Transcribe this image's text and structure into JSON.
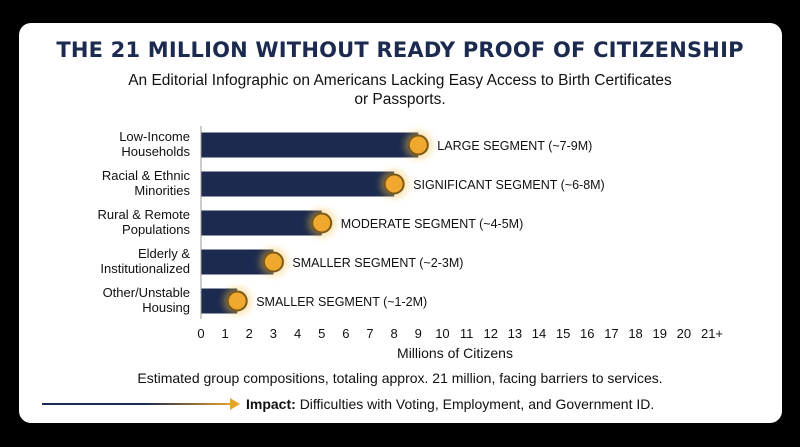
{
  "title": "THE 21 MILLION WITHOUT READY PROOF OF CITIZENSHIP",
  "subtitle": "An Editorial Infographic on Americans Lacking Easy Access to Birth Certificates or Passports.",
  "footnote": "Estimated group compositions, totaling approx. 21 million, facing barriers to services.",
  "impact": {
    "label": "Impact:",
    "text": "Difficulties with Voting, Employment, and Government ID."
  },
  "colors": {
    "bar": "#1b2a4e",
    "marker": "#f0a92e",
    "marker_stroke": "#7a5a1c",
    "title": "#1b2a4e",
    "accent": "#e8a32a"
  },
  "chart_data": {
    "type": "bar",
    "orientation": "horizontal",
    "categories": [
      [
        "Low-Income",
        "Households"
      ],
      [
        "Racial & Ethnic",
        "Minorities"
      ],
      [
        "Rural & Remote",
        "Populations"
      ],
      [
        "Elderly &",
        "Institutionalized"
      ],
      [
        "Other/Unstable",
        "Housing"
      ]
    ],
    "values": [
      9,
      8,
      5,
      3,
      1.5
    ],
    "data_labels": [
      "LARGE SEGMENT (~7-9M)",
      "SIGNIFICANT SEGMENT (~6-8M)",
      "MODERATE SEGMENT (~4-5M)",
      "SMALLER SEGMENT (~2-3M)",
      "SMALLER SEGMENT (~1-2M)"
    ],
    "xlabel": "Millions of Citizens",
    "ylabel": "",
    "xlim": [
      0,
      21
    ],
    "x_ticks": [
      "0",
      "1",
      "2",
      "3",
      "4",
      "5",
      "6",
      "7",
      "8",
      "9",
      "10",
      "11",
      "12",
      "13",
      "14",
      "15",
      "16",
      "17",
      "18",
      "19",
      "20",
      "21+"
    ],
    "grid": false,
    "legend": "none"
  }
}
